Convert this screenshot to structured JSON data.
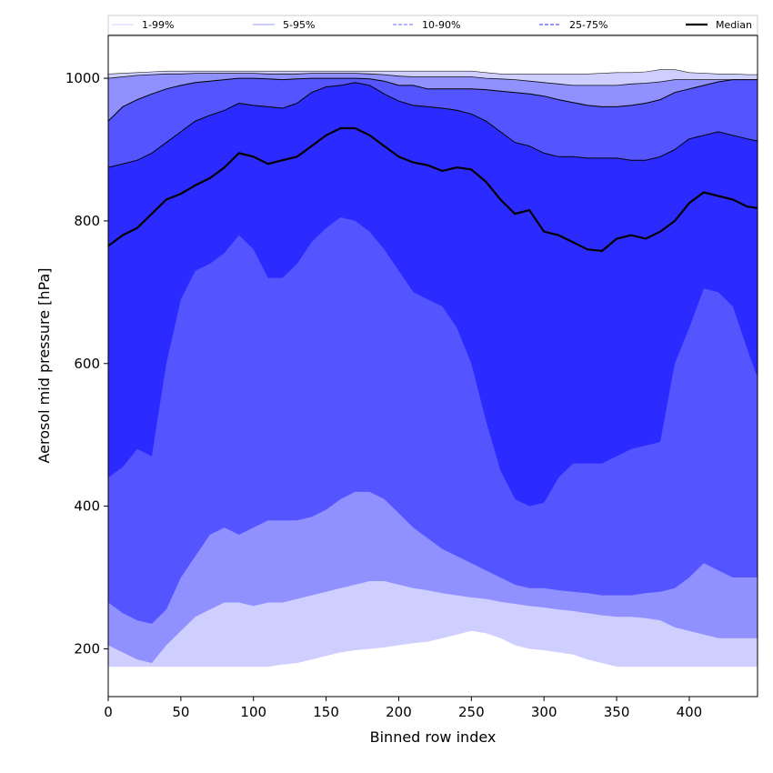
{
  "chart_data": {
    "type": "area",
    "title": "",
    "xlabel": "Binned row index",
    "ylabel": "Aerosol mid pressure [hPa]",
    "xlim": [
      0,
      447
    ],
    "ylim": [
      133,
      1060
    ],
    "xticks": [
      0,
      50,
      100,
      150,
      200,
      250,
      300,
      350,
      400
    ],
    "yticks": [
      200,
      400,
      600,
      800,
      1000
    ],
    "legend_position": "top",
    "legend": [
      {
        "label": "1-99%",
        "style": "solid-thin",
        "color": "#ccccff"
      },
      {
        "label": "5-95%",
        "style": "solid-thin",
        "color": "#9999ff"
      },
      {
        "label": "10-90%",
        "style": "dashed",
        "color": "#8888ff"
      },
      {
        "label": "25-75%",
        "style": "dashed",
        "color": "#5555ff"
      },
      {
        "label": "Median",
        "style": "solid-thick",
        "color": "#000000"
      }
    ],
    "colors": {
      "band_1_99": "#cfcfff",
      "band_5_95": "#9090ff",
      "band_10_90": "#5555ff",
      "band_25_75": "#2b2bff",
      "median": "#000000"
    },
    "x": [
      0,
      10,
      20,
      30,
      40,
      50,
      60,
      70,
      80,
      90,
      100,
      110,
      120,
      130,
      140,
      150,
      160,
      170,
      180,
      190,
      200,
      210,
      220,
      230,
      240,
      250,
      260,
      270,
      280,
      290,
      300,
      310,
      320,
      330,
      340,
      350,
      360,
      370,
      380,
      390,
      400,
      410,
      420,
      430,
      440,
      447
    ],
    "series": [
      {
        "name": "Median",
        "values": [
          765,
          780,
          790,
          810,
          830,
          838,
          850,
          860,
          875,
          895,
          890,
          880,
          885,
          890,
          905,
          920,
          930,
          930,
          920,
          905,
          890,
          882,
          878,
          870,
          875,
          872,
          855,
          830,
          810,
          815,
          785,
          780,
          770,
          760,
          758,
          775,
          780,
          775,
          785,
          800,
          825,
          840,
          835,
          830,
          820,
          818
        ]
      },
      {
        "name": "25-75% upper",
        "values": [
          875,
          880,
          885,
          895,
          910,
          925,
          940,
          948,
          955,
          965,
          962,
          960,
          958,
          965,
          980,
          988,
          990,
          994,
          990,
          978,
          968,
          962,
          960,
          958,
          955,
          950,
          940,
          925,
          910,
          905,
          895,
          890,
          890,
          888,
          888,
          888,
          885,
          885,
          890,
          900,
          915,
          920,
          925,
          920,
          915,
          912
        ]
      },
      {
        "name": "25-75% lower",
        "values": [
          440,
          455,
          480,
          470,
          600,
          690,
          730,
          740,
          755,
          780,
          760,
          720,
          720,
          740,
          770,
          790,
          805,
          800,
          785,
          760,
          730,
          700,
          690,
          680,
          650,
          600,
          520,
          450,
          410,
          400,
          405,
          440,
          460,
          460,
          460,
          470,
          480,
          485,
          490,
          600,
          650,
          705,
          700,
          680,
          620,
          580
        ]
      },
      {
        "name": "10-90% upper",
        "values": [
          940,
          960,
          970,
          978,
          985,
          990,
          994,
          996,
          998,
          1000,
          1000,
          999,
          998,
          999,
          1000,
          1000,
          1000,
          1000,
          999,
          996,
          990,
          990,
          985,
          985,
          985,
          985,
          984,
          982,
          980,
          978,
          975,
          970,
          966,
          962,
          960,
          960,
          962,
          965,
          970,
          980,
          985,
          990,
          995,
          998,
          998,
          998
        ]
      },
      {
        "name": "10-90% lower",
        "values": [
          265,
          250,
          240,
          235,
          255,
          300,
          330,
          360,
          370,
          360,
          370,
          380,
          380,
          380,
          385,
          395,
          410,
          420,
          420,
          410,
          390,
          370,
          355,
          340,
          330,
          320,
          310,
          300,
          290,
          285,
          285,
          282,
          280,
          278,
          275,
          275,
          275,
          278,
          280,
          285,
          300,
          320,
          310,
          300,
          300,
          300
        ]
      },
      {
        "name": "5-95% upper",
        "values": [
          1000,
          1002,
          1004,
          1005,
          1006,
          1006,
          1007,
          1007,
          1007,
          1007,
          1007,
          1006,
          1006,
          1006,
          1007,
          1007,
          1007,
          1007,
          1006,
          1005,
          1003,
          1002,
          1002,
          1002,
          1002,
          1002,
          1000,
          999,
          998,
          996,
          994,
          992,
          990,
          990,
          990,
          990,
          992,
          993,
          995,
          998,
          998,
          998,
          998,
          998,
          998,
          998
        ]
      },
      {
        "name": "5-95% lower",
        "values": [
          205,
          195,
          185,
          180,
          205,
          225,
          245,
          255,
          265,
          265,
          260,
          265,
          265,
          270,
          275,
          280,
          285,
          290,
          295,
          295,
          290,
          285,
          282,
          278,
          275,
          272,
          270,
          266,
          263,
          260,
          258,
          255,
          253,
          250,
          247,
          245,
          245,
          243,
          240,
          230,
          225,
          220,
          215,
          215,
          215,
          215
        ]
      },
      {
        "name": "1-99% upper",
        "values": [
          1006,
          1007,
          1008,
          1009,
          1010,
          1010,
          1010,
          1010,
          1010,
          1010,
          1010,
          1010,
          1010,
          1010,
          1010,
          1010,
          1010,
          1010,
          1010,
          1010,
          1010,
          1010,
          1010,
          1010,
          1010,
          1010,
          1008,
          1006,
          1006,
          1006,
          1006,
          1006,
          1006,
          1006,
          1007,
          1008,
          1008,
          1009,
          1012,
          1012,
          1008,
          1007,
          1006,
          1006,
          1005,
          1005
        ]
      },
      {
        "name": "1-99% lower",
        "values": [
          175,
          175,
          175,
          175,
          175,
          175,
          175,
          175,
          175,
          175,
          175,
          175,
          178,
          180,
          185,
          190,
          195,
          198,
          200,
          202,
          205,
          208,
          210,
          215,
          220,
          225,
          222,
          215,
          205,
          200,
          198,
          195,
          192,
          185,
          180,
          175,
          175,
          175,
          175,
          175,
          175,
          175,
          175,
          175,
          175,
          175
        ]
      },
      {
        "name": "Bottom",
        "values": [
          175,
          175,
          175,
          175,
          175,
          175,
          175,
          175,
          175,
          175,
          175,
          175,
          175,
          175,
          175,
          175,
          175,
          175,
          175,
          175,
          175,
          175,
          175,
          175,
          175,
          175,
          175,
          175,
          175,
          175,
          175,
          175,
          175,
          175,
          175,
          175,
          175,
          175,
          175,
          175,
          175,
          175,
          175,
          175,
          175,
          175
        ]
      }
    ]
  }
}
